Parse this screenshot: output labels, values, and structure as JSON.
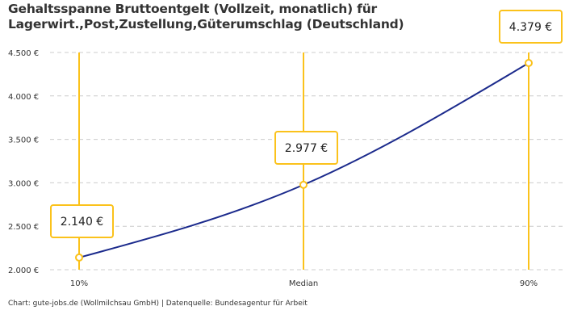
{
  "chart_data": {
    "type": "line",
    "title": "Gehaltsspanne Bruttoentgelt (Vollzeit, monatlich) für",
    "subtitle": "Lagerwirt.,Post,Zustellung,Güterumschlag (Deutschland)",
    "categories": [
      "10%",
      "Median",
      "90%"
    ],
    "values": [
      2140,
      2977,
      4379
    ],
    "data_labels": [
      "2.140 €",
      "2.977 €",
      "4.379 €"
    ],
    "ylim": [
      2000,
      4500
    ],
    "yticks": [
      2000,
      2500,
      3000,
      3500,
      4000,
      4500
    ],
    "ytick_labels": [
      "2.000 €",
      "2.500 €",
      "3.000 €",
      "3.500 €",
      "4.000 €",
      "4.500 €"
    ],
    "grid": "horizontal dashed",
    "line_color": "#1b2a8c",
    "accent_color": "#fbc21b"
  },
  "footer": "Chart: gute-jobs.de (Wollmilchsau GmbH) | Datenquelle: Bundesagentur für Arbeit"
}
